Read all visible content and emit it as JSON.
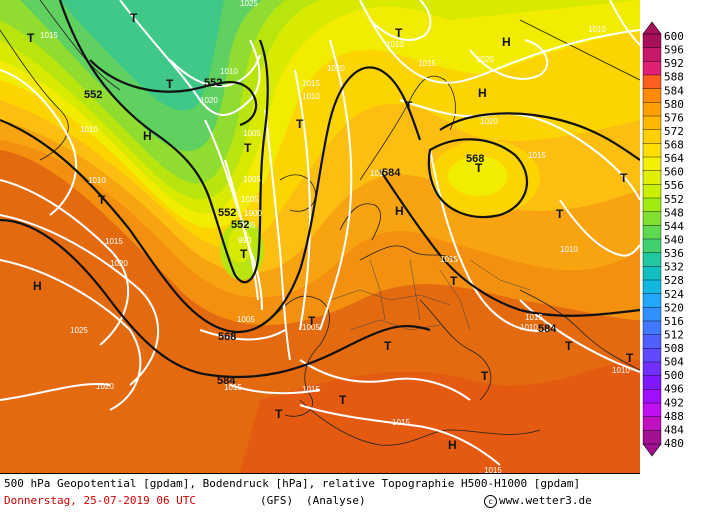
{
  "map": {
    "pressure_labels": [
      "1015",
      "1010",
      "1010",
      "1010",
      "1015",
      "1020",
      "1025",
      "1020",
      "1025",
      "1020",
      "1015",
      "1010",
      "1005",
      "1005",
      "1005",
      "1000",
      "995",
      "990",
      "1020",
      "1010",
      "1015",
      "1020",
      "1015",
      "1010",
      "1005",
      "1005",
      "1010",
      "1015",
      "1015",
      "1010",
      "1015",
      "1015",
      "1020",
      "1015",
      "1010",
      "1015",
      "1010"
    ],
    "geopotential_labels": [
      "552",
      "552",
      "552",
      "552",
      "568",
      "584",
      "584",
      "584",
      "568"
    ],
    "high_symbol": "H",
    "low_symbol": "T"
  },
  "legend": {
    "unit": "gpdam",
    "values": [
      "600",
      "596",
      "592",
      "588",
      "584",
      "580",
      "576",
      "572",
      "568",
      "564",
      "560",
      "556",
      "552",
      "548",
      "544",
      "540",
      "536",
      "532",
      "528",
      "524",
      "520",
      "516",
      "512",
      "508",
      "504",
      "500",
      "496",
      "492",
      "488",
      "484",
      "480"
    ],
    "colors": [
      "#a8105a",
      "#c8186a",
      "#e02070",
      "#ff6020",
      "#ff8a00",
      "#ffa000",
      "#ffb800",
      "#ffd000",
      "#ffe000",
      "#f4f000",
      "#e0f000",
      "#c8f000",
      "#a0ec10",
      "#80e030",
      "#60d850",
      "#40d070",
      "#20c8a0",
      "#10c0c0",
      "#10b8e0",
      "#20a8ff",
      "#3090ff",
      "#4078ff",
      "#5060ff",
      "#6048ff",
      "#7030ff",
      "#8018ff",
      "#a010ff",
      "#c010f0",
      "#c010c0",
      "#a01090"
    ]
  },
  "footer": {
    "line1": "500 hPa Geopotential [gpdam], Bodendruck [hPa], relative Topographie H500-H1000 [gpdam]",
    "date": "Donnerstag, 25-07-2019  06 UTC",
    "model": "(GFS)",
    "analysis": "(Analyse)",
    "copyright": "www.wetter3.de"
  }
}
